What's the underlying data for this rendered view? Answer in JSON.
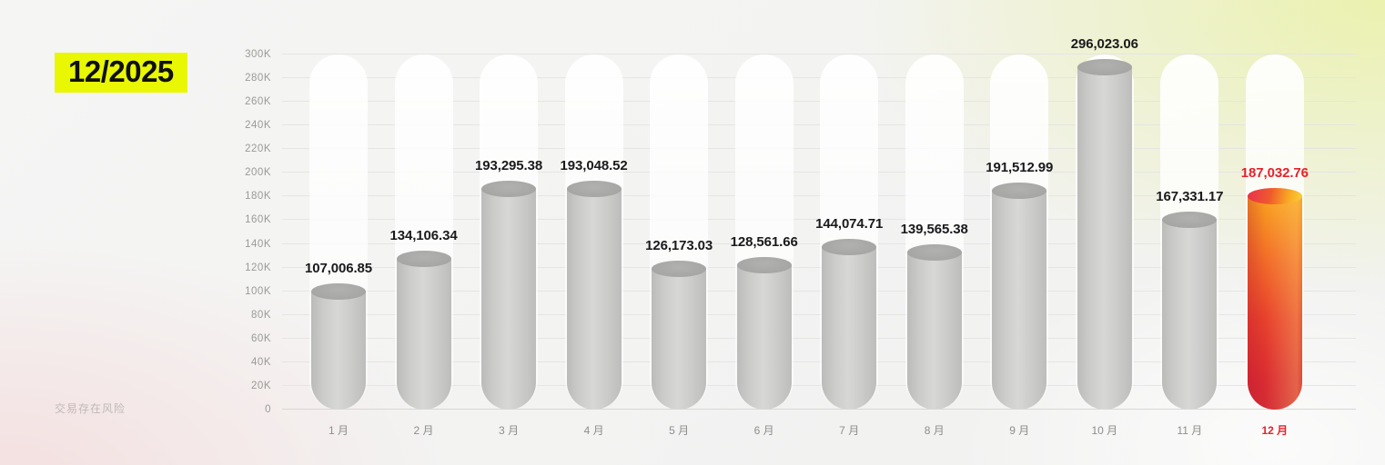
{
  "page": {
    "period_badge": "12/2025",
    "disclaimer": "交易存在风险"
  },
  "chart_data": {
    "type": "bar",
    "categories": [
      "1 月",
      "2 月",
      "3 月",
      "4 月",
      "5 月",
      "6 月",
      "7 月",
      "8 月",
      "9 月",
      "10 月",
      "11 月",
      "12 月"
    ],
    "values": [
      107006.85,
      134106.34,
      193295.38,
      193048.52,
      126173.03,
      128561.66,
      144074.71,
      139565.38,
      191512.99,
      296023.06,
      167331.17,
      187032.76
    ],
    "value_labels": [
      "107,006.85",
      "134,106.34",
      "193,295.38",
      "193,048.52",
      "126,173.03",
      "128,561.66",
      "144,074.71",
      "139,565.38",
      "191,512.99",
      "296,023.06",
      "167,331.17",
      "187,032.76"
    ],
    "highlight_index": 11,
    "xlabel": "",
    "ylabel": "",
    "ylim": [
      0,
      300000
    ],
    "y_tick_step": 20000,
    "y_tick_labels": [
      "0",
      "20K",
      "40K",
      "60K",
      "80K",
      "100K",
      "120K",
      "140K",
      "160K",
      "180K",
      "200K",
      "220K",
      "240K",
      "260K",
      "280K",
      "300K"
    ],
    "grid": true,
    "legend": false,
    "colors": {
      "bar_default": "#c9c9c7",
      "bar_highlight_top": "#f9a21e",
      "bar_highlight_bottom": "#d42a34",
      "highlight_text": "#e62129",
      "badge_bg": "#e9f702",
      "badge_text": "#101010",
      "axis_text": "#9a9a98",
      "value_text": "#1a1a1c"
    }
  }
}
